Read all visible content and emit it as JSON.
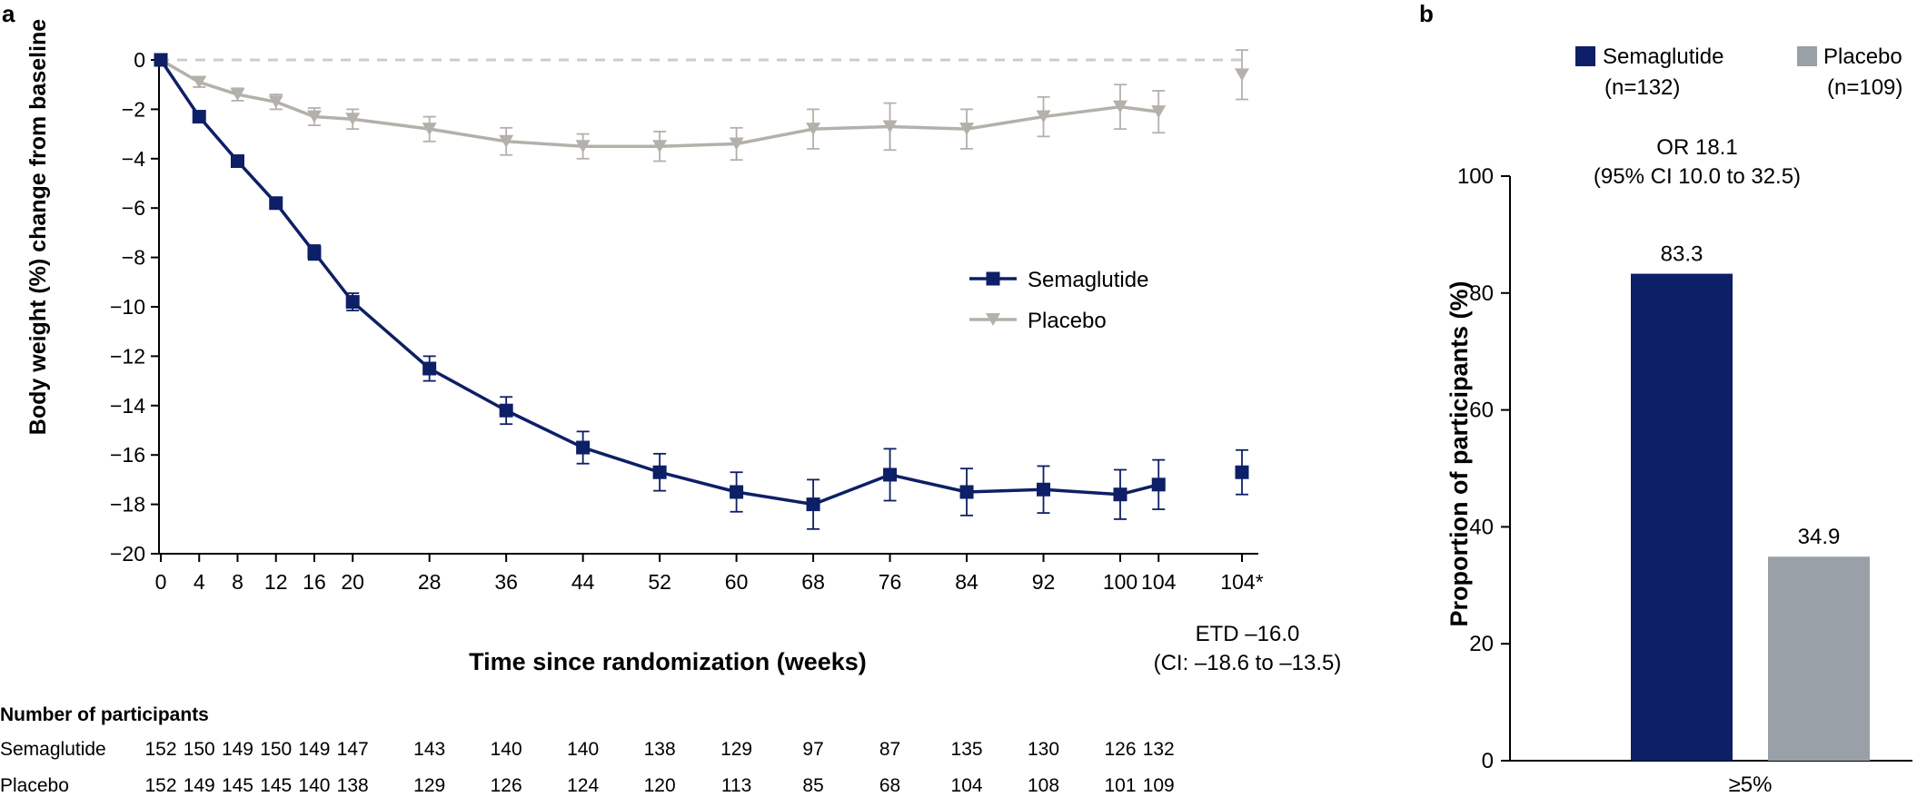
{
  "panel_a": {
    "label": "a",
    "ylabel": "Body weight (%) change from baseline",
    "xlabel": "Time since randomization (weeks)",
    "etd_line1": "ETD –16.0",
    "etd_line2": "(CI: –18.6 to –13.5)",
    "participants_title": "Number of participants",
    "participants": [
      {
        "group": "Semaglutide",
        "counts": [
          "152",
          "150",
          "149",
          "150",
          "149",
          "147",
          "143",
          "140",
          "140",
          "138",
          "129",
          "97",
          "87",
          "135",
          "130",
          "126",
          "132"
        ]
      },
      {
        "group": "Placebo",
        "counts": [
          "152",
          "149",
          "145",
          "145",
          "140",
          "138",
          "129",
          "126",
          "124",
          "120",
          "113",
          "85",
          "68",
          "104",
          "108",
          "101",
          "109"
        ]
      }
    ]
  },
  "panel_b": {
    "label": "b",
    "legend": [
      {
        "name": "Semaglutide",
        "n": "(n=132)",
        "color": "#0d1f66"
      },
      {
        "name": "Placebo",
        "n": "(n=109)",
        "color": "#9aa0a8"
      }
    ],
    "or_line1": "OR 18.1",
    "or_line2": "(95% CI 10.0 to 32.5)"
  },
  "chart_data": [
    {
      "type": "line",
      "panel": "a",
      "xlabel": "Time since randomization (weeks)",
      "ylabel": "Body weight (%) change from baseline",
      "ylim": [
        -20,
        0
      ],
      "yticks": [
        0,
        -2,
        -4,
        -6,
        -8,
        -10,
        -12,
        -14,
        -16,
        -18,
        -20
      ],
      "ytick_labels": [
        "0",
        "−2",
        "−4",
        "−6",
        "−8",
        "−10",
        "−12",
        "−14",
        "−16",
        "−18",
        "−20"
      ],
      "x_categories": [
        "0",
        "4",
        "8",
        "12",
        "16",
        "20",
        "28",
        "36",
        "44",
        "52",
        "60",
        "68",
        "76",
        "84",
        "92",
        "100",
        "104",
        "104*"
      ],
      "reference_line": 0,
      "legend_position": "center-right",
      "series": [
        {
          "name": "Semaglutide",
          "color": "#0d1f66",
          "marker": "square",
          "x": [
            "0",
            "4",
            "8",
            "12",
            "16",
            "20",
            "28",
            "36",
            "44",
            "52",
            "60",
            "68",
            "76",
            "84",
            "92",
            "100",
            "104",
            "104*"
          ],
          "y": [
            0,
            -2.3,
            -4.1,
            -5.8,
            -7.8,
            -9.8,
            -12.5,
            -14.2,
            -15.7,
            -16.7,
            -17.5,
            -18.0,
            -16.8,
            -17.5,
            -17.4,
            -17.6,
            -17.2,
            -16.7
          ],
          "err": [
            0,
            0.15,
            0.15,
            0.2,
            0.3,
            0.35,
            0.5,
            0.55,
            0.65,
            0.75,
            0.8,
            1.0,
            1.05,
            0.95,
            0.95,
            1.0,
            1.0,
            0.9
          ]
        },
        {
          "name": "Placebo",
          "color": "#b4b0aa",
          "marker": "triangle-down",
          "x": [
            "0",
            "4",
            "8",
            "12",
            "16",
            "20",
            "28",
            "36",
            "44",
            "52",
            "60",
            "68",
            "76",
            "84",
            "92",
            "100",
            "104",
            "104*"
          ],
          "y": [
            0,
            -0.9,
            -1.4,
            -1.7,
            -2.3,
            -2.4,
            -2.8,
            -3.3,
            -3.5,
            -3.5,
            -3.4,
            -2.8,
            -2.7,
            -2.8,
            -2.3,
            -1.9,
            -2.1,
            -0.6
          ],
          "err": [
            0,
            0.2,
            0.25,
            0.3,
            0.35,
            0.4,
            0.5,
            0.55,
            0.5,
            0.6,
            0.65,
            0.8,
            0.95,
            0.8,
            0.8,
            0.9,
            0.85,
            1.0
          ]
        }
      ]
    },
    {
      "type": "bar",
      "panel": "b",
      "categories": [
        "≥5%"
      ],
      "ylabel": "Proportion of participants (%)",
      "ylim": [
        0,
        100
      ],
      "yticks": [
        0,
        20,
        40,
        60,
        80,
        100
      ],
      "series": [
        {
          "name": "Semaglutide",
          "values": [
            83.3
          ],
          "color": "#0d1f66",
          "labels": [
            "83.3"
          ]
        },
        {
          "name": "Placebo",
          "values": [
            34.9
          ],
          "color": "#9aa0a8",
          "labels": [
            "34.9"
          ]
        }
      ]
    }
  ]
}
